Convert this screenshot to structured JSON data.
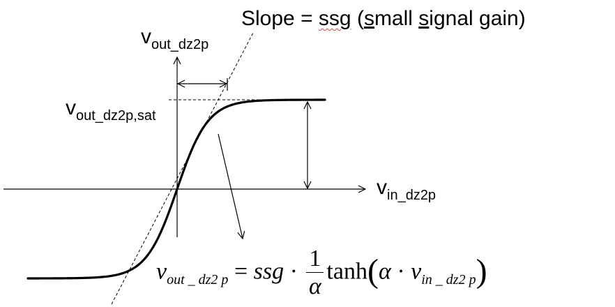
{
  "slope_label": {
    "prefix": "Slope = ",
    "ssg": "ssg",
    "paren_open": " (",
    "s1": "s",
    "w1": "mall ",
    "s2": "s",
    "w2": "ignal ",
    "g": "g",
    "w3": "ain)"
  },
  "y_axis_label": {
    "main": "v",
    "sub": "out_dz2p"
  },
  "sat_label": {
    "main": "v",
    "sub": "out_dz2p,sat"
  },
  "x_axis_label": {
    "main": "v",
    "sub": "in_dz2p"
  },
  "equation": {
    "lhs_main": "v",
    "lhs_sub": "out _ dz2 p",
    "equals": " = ",
    "ssg": "ssg",
    "dot1": " · ",
    "frac_num": "1",
    "frac_den": "α",
    "tanh": "tanh",
    "open": "(",
    "alpha": "α",
    "dot2": " · ",
    "arg_main": "v",
    "arg_sub": "in _ dz2 p",
    "close": ")"
  },
  "curve": {
    "function": "tanh",
    "origin_x_px_note": "",
    "stroke_color": "#000000"
  }
}
